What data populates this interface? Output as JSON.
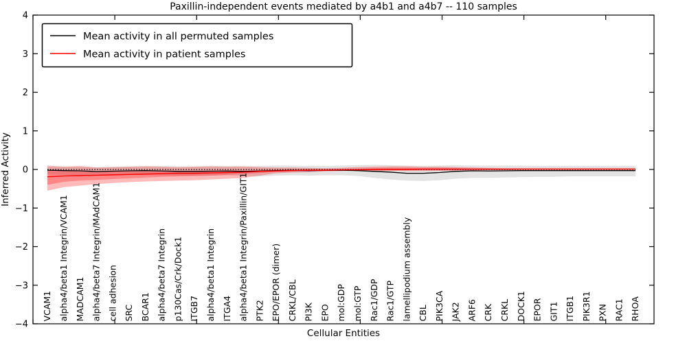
{
  "figure": {
    "title": "Paxillin-independent events mediated by a4b1 and a4b7 -- 110 samples",
    "xlabel": "Cellular Entities",
    "ylabel": "Inferred Activity"
  },
  "legend": {
    "entries": [
      {
        "label": "Mean activity in all permuted samples",
        "color": "#000000"
      },
      {
        "label": "Mean activity in patient samples",
        "color": "#ff0000"
      }
    ]
  },
  "chart_data": {
    "type": "line",
    "title": "Paxillin-independent events mediated by a4b1 and a4b7 -- 110 samples",
    "xlabel": "Cellular Entities",
    "ylabel": "Inferred Activity",
    "ylim": [
      -4,
      4
    ],
    "yticks": [
      4,
      3,
      2,
      1,
      0,
      -1,
      -2,
      -3,
      -4
    ],
    "grid": false,
    "legend_position": "upper left",
    "reference_line": {
      "y": 0,
      "style": "dotted",
      "color": "#000000"
    },
    "band_colors": {
      "permuted": "#000000",
      "patient": "#ff0000"
    },
    "band_opacities": {
      "permuted": 0.11,
      "patient": 0.27
    },
    "categories": [
      "VCAM1",
      "alpha4/beta1 Integrin/VCAM1",
      "MADCAM1",
      "alpha4/beta7 Integrin/MAdCAM1",
      "cell adhesion",
      "SRC",
      "BCAR1",
      "alpha4/beta7 Integrin",
      "p130Cas/Crk/Dock1",
      "ITGB7",
      "alpha4/beta1 Integrin",
      "ITGA4",
      "alpha4/beta1 Integrin/Paxillin/GIT1",
      "PTK2",
      "EPO/EPOR (dimer)",
      "CRKL/CBL",
      "PI3K",
      "EPO",
      "mol:GDP",
      "mol:GTP",
      "Rac1/GDP",
      "Rac1/GTP",
      "lamellipodium assembly",
      "CBL",
      "PIK3CA",
      "JAK2",
      "ARF6",
      "CRK",
      "CRKL",
      "DOCK1",
      "EPOR",
      "GIT1",
      "ITGB1",
      "PIK3R1",
      "PXN",
      "RAC1",
      "RHOA"
    ],
    "series": [
      {
        "name": "Mean activity in all permuted samples",
        "color": "#000000",
        "values": [
          -0.02,
          -0.03,
          -0.035,
          -0.055,
          -0.045,
          -0.035,
          -0.03,
          -0.04,
          -0.05,
          -0.05,
          -0.045,
          -0.04,
          -0.05,
          -0.04,
          -0.03,
          -0.025,
          -0.03,
          -0.025,
          -0.02,
          -0.03,
          -0.05,
          -0.07,
          -0.1,
          -0.1,
          -0.08,
          -0.05,
          -0.035,
          -0.04,
          -0.035,
          -0.03,
          -0.03,
          -0.03,
          -0.03,
          -0.03,
          -0.03,
          -0.03,
          -0.03
        ],
        "band_upper": [
          0.07,
          0.08,
          0.07,
          0.06,
          0.07,
          0.08,
          0.09,
          0.09,
          0.08,
          0.08,
          0.09,
          0.09,
          0.08,
          0.09,
          0.1,
          0.1,
          0.09,
          0.09,
          0.1,
          0.11,
          0.12,
          0.11,
          0.1,
          0.09,
          0.1,
          0.11,
          0.1,
          0.1,
          0.1,
          0.1,
          0.09,
          0.09,
          0.09,
          0.09,
          0.09,
          0.09,
          0.09
        ],
        "band_lower": [
          -0.13,
          -0.14,
          -0.15,
          -0.17,
          -0.15,
          -0.14,
          -0.14,
          -0.15,
          -0.16,
          -0.17,
          -0.16,
          -0.15,
          -0.17,
          -0.18,
          -0.16,
          -0.15,
          -0.16,
          -0.15,
          -0.15,
          -0.17,
          -0.22,
          -0.26,
          -0.29,
          -0.3,
          -0.28,
          -0.24,
          -0.22,
          -0.22,
          -0.21,
          -0.2,
          -0.19,
          -0.19,
          -0.18,
          -0.18,
          -0.18,
          -0.18,
          -0.18
        ]
      },
      {
        "name": "Mean activity in patient samples",
        "color": "#ff0000",
        "values": [
          -0.19,
          -0.17,
          -0.16,
          -0.15,
          -0.14,
          -0.13,
          -0.12,
          -0.11,
          -0.1,
          -0.1,
          -0.09,
          -0.08,
          -0.07,
          -0.05,
          -0.04,
          -0.03,
          -0.02,
          -0.02,
          -0.01,
          -0.01,
          0.0,
          0.0,
          0.0,
          0.01,
          0.01,
          0.01,
          0.01,
          0.01,
          0.01,
          0.01,
          0.01,
          0.01,
          0.01,
          0.01,
          0.01,
          0.01,
          0.01
        ],
        "band_upper": [
          0.1,
          0.07,
          0.09,
          0.05,
          0.06,
          0.07,
          0.08,
          0.07,
          0.06,
          0.07,
          0.08,
          0.07,
          0.08,
          0.06,
          0.05,
          0.05,
          0.04,
          0.03,
          0.04,
          0.06,
          0.07,
          0.08,
          0.08,
          0.07,
          0.07,
          0.06,
          0.05,
          0.04,
          0.03,
          0.03,
          0.03,
          0.03,
          0.03,
          0.03,
          0.03,
          0.03,
          0.03
        ],
        "band_lower": [
          -0.55,
          -0.46,
          -0.42,
          -0.38,
          -0.35,
          -0.33,
          -0.31,
          -0.3,
          -0.29,
          -0.28,
          -0.26,
          -0.24,
          -0.22,
          -0.16,
          -0.1,
          -0.08,
          -0.07,
          -0.05,
          -0.04,
          -0.03,
          -0.04,
          -0.04,
          -0.04,
          -0.04,
          -0.04,
          -0.03,
          -0.03,
          -0.02,
          -0.02,
          -0.01,
          -0.01,
          -0.01,
          -0.01,
          -0.01,
          -0.01,
          -0.01,
          -0.01
        ],
        "band_inner_upper": [
          -0.02,
          -0.04,
          -0.05,
          -0.05,
          -0.05,
          -0.05,
          -0.05,
          -0.06,
          -0.06,
          -0.06,
          -0.05,
          -0.05,
          -0.04,
          -0.02,
          -0.01,
          0.0,
          0.0,
          0.0,
          0.01,
          0.02,
          0.03,
          0.04,
          0.04,
          0.03,
          0.03,
          0.03,
          0.02,
          0.02,
          0.01,
          0.01,
          0.01,
          0.01,
          0.01,
          0.01,
          0.01,
          0.01,
          0.01
        ],
        "band_inner_lower": [
          -0.4,
          -0.32,
          -0.29,
          -0.27,
          -0.25,
          -0.23,
          -0.21,
          -0.19,
          -0.18,
          -0.17,
          -0.16,
          -0.14,
          -0.12,
          -0.09,
          -0.06,
          -0.05,
          -0.04,
          -0.03,
          -0.02,
          -0.02,
          -0.02,
          -0.02,
          -0.02,
          -0.02,
          -0.02,
          -0.02,
          -0.01,
          -0.01,
          -0.01,
          0.0,
          0.0,
          0.0,
          0.0,
          0.0,
          0.0,
          0.0,
          0.0
        ]
      }
    ]
  }
}
